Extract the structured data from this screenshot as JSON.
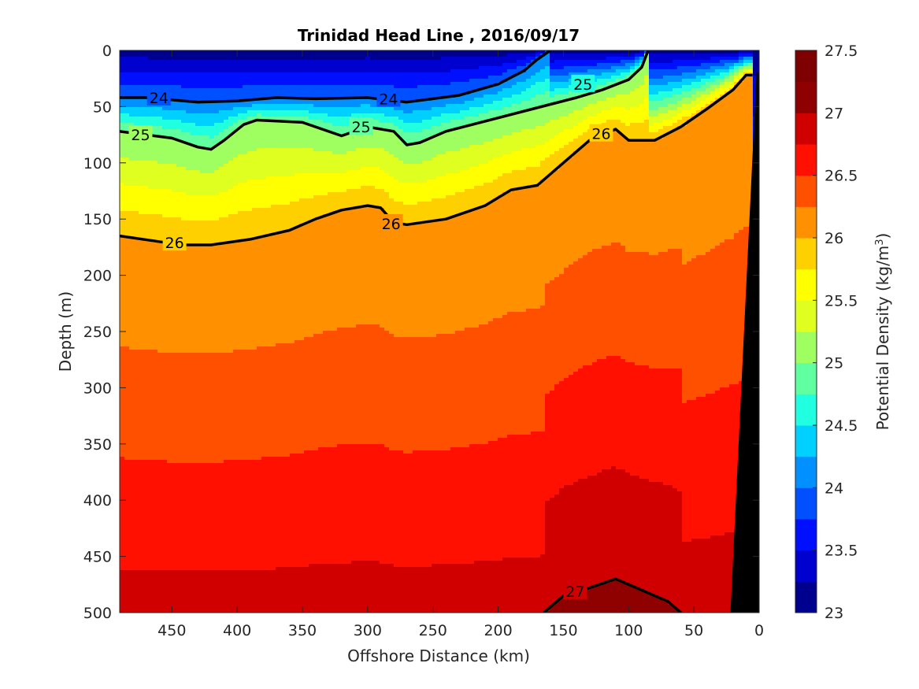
{
  "chart_data": {
    "type": "filled-contour",
    "title": "Trinidad Head Line , 2016/09/17",
    "xlabel": "Offshore Distance (km)",
    "ylabel": "Depth (m)",
    "xlim": [
      490,
      0
    ],
    "ylim": [
      500,
      0
    ],
    "x_reversed": true,
    "y_reversed": true,
    "x_ticks": [
      450,
      400,
      350,
      300,
      250,
      200,
      150,
      100,
      50,
      0
    ],
    "y_ticks": [
      0,
      50,
      100,
      150,
      200,
      250,
      300,
      350,
      400,
      450,
      500
    ],
    "colorbar": {
      "label_prefix": "Potential Density (kg/m",
      "label_sup": "3",
      "label_suffix": ")",
      "range": [
        23,
        27.5
      ],
      "step": 0.25,
      "tick_values": [
        23,
        23.5,
        24,
        24.5,
        25,
        25.5,
        26,
        26.5,
        27,
        27.5
      ],
      "tick_labels": [
        "23",
        "23.5",
        "24",
        "24.5",
        "25",
        "25.5",
        "26",
        "26.5",
        "27",
        "27.5"
      ],
      "colors": [
        "#00008f",
        "#0000cf",
        "#0010ff",
        "#0050ff",
        "#0090ff",
        "#00d0ff",
        "#20ffdf",
        "#60ff9f",
        "#9fff60",
        "#dfff20",
        "#ffff00",
        "#ffd000",
        "#ff9000",
        "#ff5000",
        "#ff1000",
        "#d00000",
        "#8f0000",
        "#7f0000"
      ]
    },
    "isopycnals": [
      {
        "density": 24,
        "depth_by_distance": [
          [
            490,
            42
          ],
          [
            470,
            42
          ],
          [
            430,
            46
          ],
          [
            400,
            45
          ],
          [
            370,
            42
          ],
          [
            340,
            43
          ],
          [
            300,
            42
          ],
          [
            270,
            46
          ],
          [
            230,
            40
          ],
          [
            200,
            30
          ],
          [
            180,
            18
          ],
          [
            170,
            8
          ],
          [
            160,
            0
          ]
        ]
      },
      {
        "density": 25,
        "depth_by_distance": [
          [
            490,
            72
          ],
          [
            450,
            78
          ],
          [
            430,
            86
          ],
          [
            420,
            88
          ],
          [
            410,
            80
          ],
          [
            395,
            66
          ],
          [
            385,
            62
          ],
          [
            350,
            64
          ],
          [
            320,
            76
          ],
          [
            300,
            68
          ],
          [
            280,
            72
          ],
          [
            270,
            84
          ],
          [
            260,
            82
          ],
          [
            240,
            72
          ],
          [
            200,
            60
          ],
          [
            160,
            48
          ],
          [
            140,
            42
          ],
          [
            120,
            35
          ],
          [
            100,
            26
          ],
          [
            90,
            15
          ],
          [
            85,
            0
          ]
        ]
      },
      {
        "density": 26,
        "depth_by_distance": [
          [
            490,
            165
          ],
          [
            460,
            170
          ],
          [
            440,
            173
          ],
          [
            420,
            173
          ],
          [
            390,
            168
          ],
          [
            360,
            160
          ],
          [
            340,
            150
          ],
          [
            320,
            142
          ],
          [
            300,
            138
          ],
          [
            290,
            140
          ],
          [
            280,
            153
          ],
          [
            270,
            155
          ],
          [
            240,
            150
          ],
          [
            210,
            138
          ],
          [
            190,
            124
          ],
          [
            170,
            120
          ],
          [
            150,
            100
          ],
          [
            130,
            80
          ],
          [
            110,
            70
          ],
          [
            100,
            80
          ],
          [
            80,
            80
          ],
          [
            60,
            68
          ],
          [
            40,
            52
          ],
          [
            20,
            35
          ],
          [
            10,
            22
          ],
          [
            5,
            22
          ]
        ]
      },
      {
        "density": 27,
        "depth_by_distance": [
          [
            165,
            500
          ],
          [
            150,
            485
          ],
          [
            130,
            478
          ],
          [
            110,
            470
          ],
          [
            90,
            480
          ],
          [
            70,
            490
          ],
          [
            60,
            500
          ]
        ]
      }
    ],
    "contour_labels": [
      {
        "text": "24",
        "x": 460,
        "y": 42
      },
      {
        "text": "24",
        "x": 284,
        "y": 43
      },
      {
        "text": "25",
        "x": 474,
        "y": 75
      },
      {
        "text": "25",
        "x": 305,
        "y": 68
      },
      {
        "text": "25",
        "x": 135,
        "y": 30
      },
      {
        "text": "26",
        "x": 448,
        "y": 171
      },
      {
        "text": "26",
        "x": 282,
        "y": 154
      },
      {
        "text": "26",
        "x": 121,
        "y": 74
      },
      {
        "text": "27",
        "x": 141,
        "y": 481
      }
    ]
  }
}
